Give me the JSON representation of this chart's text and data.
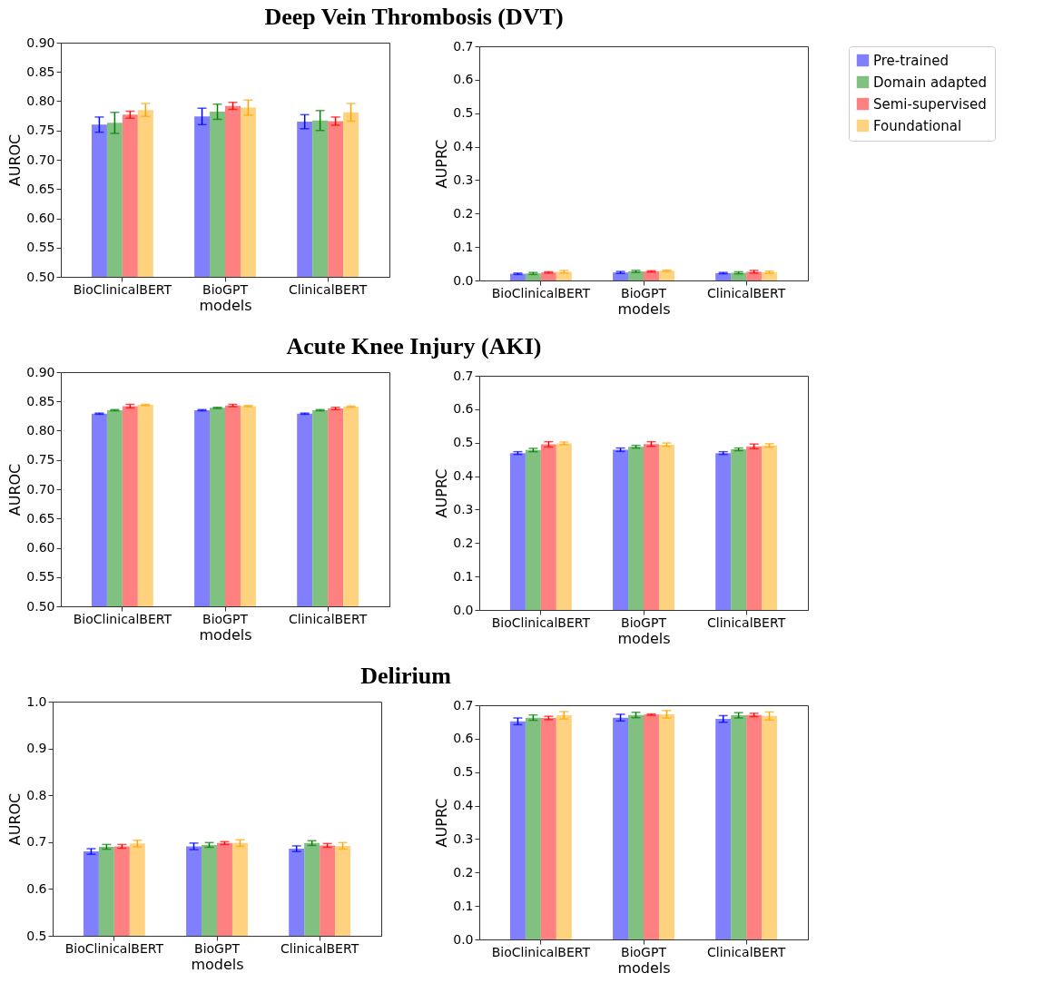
{
  "chart_data": [
    {
      "type": "bar",
      "title": "Deep Vein Thrombosis (DVT)",
      "xlabel": "models",
      "ylabel": "AUROC",
      "categories": [
        "BioClinicalBERT",
        "BioGPT",
        "ClinicalBERT"
      ],
      "ylim": [
        0.5,
        0.9
      ],
      "yticks": [
        {
          "value": 0.5,
          "label": "0.50"
        },
        0.55,
        {
          "value": 0.6,
          "label": "0.60"
        },
        0.65,
        {
          "value": 0.7,
          "label": "0.70"
        },
        0.75,
        {
          "value": 0.8,
          "label": "0.80"
        },
        0.85,
        {
          "value": 0.9,
          "label": "0.90"
        }
      ],
      "series": [
        {
          "color": "#8080ff",
          "values": [
            0.76,
            0.774,
            0.765
          ],
          "errors": [
            0.013,
            0.014,
            0.012
          ]
        },
        {
          "color": "#80c080",
          "values": [
            0.763,
            0.782,
            0.767
          ],
          "errors": [
            0.018,
            0.013,
            0.017
          ]
        },
        {
          "color": "#ff8080",
          "values": [
            0.777,
            0.792,
            0.766
          ],
          "errors": [
            0.006,
            0.006,
            0.007
          ]
        },
        {
          "color": "#ffd280",
          "values": [
            0.785,
            0.789,
            0.781
          ],
          "errors": [
            0.011,
            0.013,
            0.015
          ]
        }
      ]
    },
    {
      "type": "bar",
      "xlabel": "models",
      "ylabel": "AUPRC",
      "categories": [
        "BioClinicalBERT",
        "BioGPT",
        "ClinicalBERT"
      ],
      "ylim": [
        0,
        0.7
      ],
      "yticks": [
        {
          "value": 0,
          "label": "0.0"
        },
        0.1,
        0.2,
        0.3,
        0.4,
        0.5,
        0.6,
        0.7
      ],
      "legend": "right",
      "series": [
        {
          "name": "Pre-trained",
          "color": "#8080ff",
          "values": [
            0.02,
            0.024,
            0.022
          ],
          "errors": [
            0.002,
            0.003,
            0.002
          ]
        },
        {
          "name": "Domain adapted",
          "color": "#80c080",
          "values": [
            0.021,
            0.027,
            0.023
          ],
          "errors": [
            0.003,
            0.003,
            0.003
          ]
        },
        {
          "name": "Semi-supervised",
          "color": "#ff8080",
          "values": [
            0.024,
            0.027,
            0.026
          ],
          "errors": [
            0.002,
            0.002,
            0.004
          ]
        },
        {
          "name": "Foundational",
          "color": "#ffd280",
          "values": [
            0.026,
            0.029,
            0.025
          ],
          "errors": [
            0.004,
            0.002,
            0.003
          ]
        }
      ]
    },
    {
      "type": "bar",
      "title": "Acute Knee Injury (AKI)",
      "xlabel": "models",
      "ylabel": "AUROC",
      "categories": [
        "BioClinicalBERT",
        "BioGPT",
        "ClinicalBERT"
      ],
      "ylim": [
        0.5,
        0.9
      ],
      "yticks": [
        {
          "value": 0.5,
          "label": "0.50"
        },
        0.55,
        {
          "value": 0.6,
          "label": "0.60"
        },
        0.65,
        {
          "value": 0.7,
          "label": "0.70"
        },
        0.75,
        {
          "value": 0.8,
          "label": "0.80"
        },
        0.85,
        {
          "value": 0.9,
          "label": "0.90"
        }
      ],
      "series": [
        {
          "color": "#8080ff",
          "values": [
            0.829,
            0.835,
            0.829
          ],
          "errors": [
            0.001,
            0.001,
            0.001
          ]
        },
        {
          "color": "#80c080",
          "values": [
            0.835,
            0.839,
            0.835
          ],
          "errors": [
            0.001,
            0.001,
            0.001
          ]
        },
        {
          "color": "#ff8080",
          "values": [
            0.842,
            0.843,
            0.838
          ],
          "errors": [
            0.003,
            0.002,
            0.002
          ]
        },
        {
          "color": "#ffd280",
          "values": [
            0.844,
            0.842,
            0.841
          ],
          "errors": [
            0.001,
            0.001,
            0.001
          ]
        }
      ]
    },
    {
      "type": "bar",
      "xlabel": "models",
      "ylabel": "AUPRC",
      "categories": [
        "BioClinicalBERT",
        "BioGPT",
        "ClinicalBERT"
      ],
      "ylim": [
        0,
        0.7
      ],
      "yticks": [
        {
          "value": 0,
          "label": "0.0"
        },
        0.1,
        0.2,
        0.3,
        0.4,
        0.5,
        0.6,
        0.7
      ],
      "series": [
        {
          "color": "#8080ff",
          "values": [
            0.469,
            0.479,
            0.469
          ],
          "errors": [
            0.004,
            0.005,
            0.004
          ]
        },
        {
          "color": "#80c080",
          "values": [
            0.478,
            0.488,
            0.48
          ],
          "errors": [
            0.005,
            0.004,
            0.004
          ]
        },
        {
          "color": "#ff8080",
          "values": [
            0.495,
            0.496,
            0.489
          ],
          "errors": [
            0.008,
            0.007,
            0.007
          ]
        },
        {
          "color": "#ffd280",
          "values": [
            0.498,
            0.494,
            0.492
          ],
          "errors": [
            0.004,
            0.005,
            0.005
          ]
        }
      ]
    },
    {
      "type": "bar",
      "title": "Delirium",
      "xlabel": "models",
      "ylabel": "AUROC",
      "categories": [
        "BioClinicalBERT",
        "BioGPT",
        "ClinicalBERT"
      ],
      "ylim": [
        0.5,
        1.0
      ],
      "yticks": [
        0.5,
        0.6,
        0.7,
        0.8,
        0.9,
        {
          "value": 1,
          "label": "1.0"
        }
      ],
      "series": [
        {
          "color": "#8080ff",
          "values": [
            0.68,
            0.691,
            0.686
          ],
          "errors": [
            0.006,
            0.007,
            0.006
          ]
        },
        {
          "color": "#80c080",
          "values": [
            0.69,
            0.694,
            0.698
          ],
          "errors": [
            0.005,
            0.005,
            0.005
          ]
        },
        {
          "color": "#ff8080",
          "values": [
            0.691,
            0.698,
            0.693
          ],
          "errors": [
            0.004,
            0.003,
            0.004
          ]
        },
        {
          "color": "#ffd280",
          "values": [
            0.697,
            0.698,
            0.692
          ],
          "errors": [
            0.007,
            0.007,
            0.007
          ]
        }
      ]
    },
    {
      "type": "bar",
      "xlabel": "models",
      "ylabel": "AUPRC",
      "categories": [
        "BioClinicalBERT",
        "BioGPT",
        "ClinicalBERT"
      ],
      "ylim": [
        0,
        0.7
      ],
      "yticks": [
        {
          "value": 0,
          "label": "0.0"
        },
        0.1,
        0.2,
        0.3,
        0.4,
        0.5,
        0.6,
        0.7
      ],
      "series": [
        {
          "color": "#8080ff",
          "values": [
            0.652,
            0.663,
            0.659
          ],
          "errors": [
            0.01,
            0.01,
            0.01
          ]
        },
        {
          "color": "#80c080",
          "values": [
            0.663,
            0.671,
            0.67
          ],
          "errors": [
            0.008,
            0.008,
            0.008
          ]
        },
        {
          "color": "#ff8080",
          "values": [
            0.662,
            0.672,
            0.671
          ],
          "errors": [
            0.005,
            0.002,
            0.005
          ]
        },
        {
          "color": "#ffd280",
          "values": [
            0.67,
            0.673,
            0.668
          ],
          "errors": [
            0.011,
            0.011,
            0.012
          ]
        }
      ]
    }
  ]
}
